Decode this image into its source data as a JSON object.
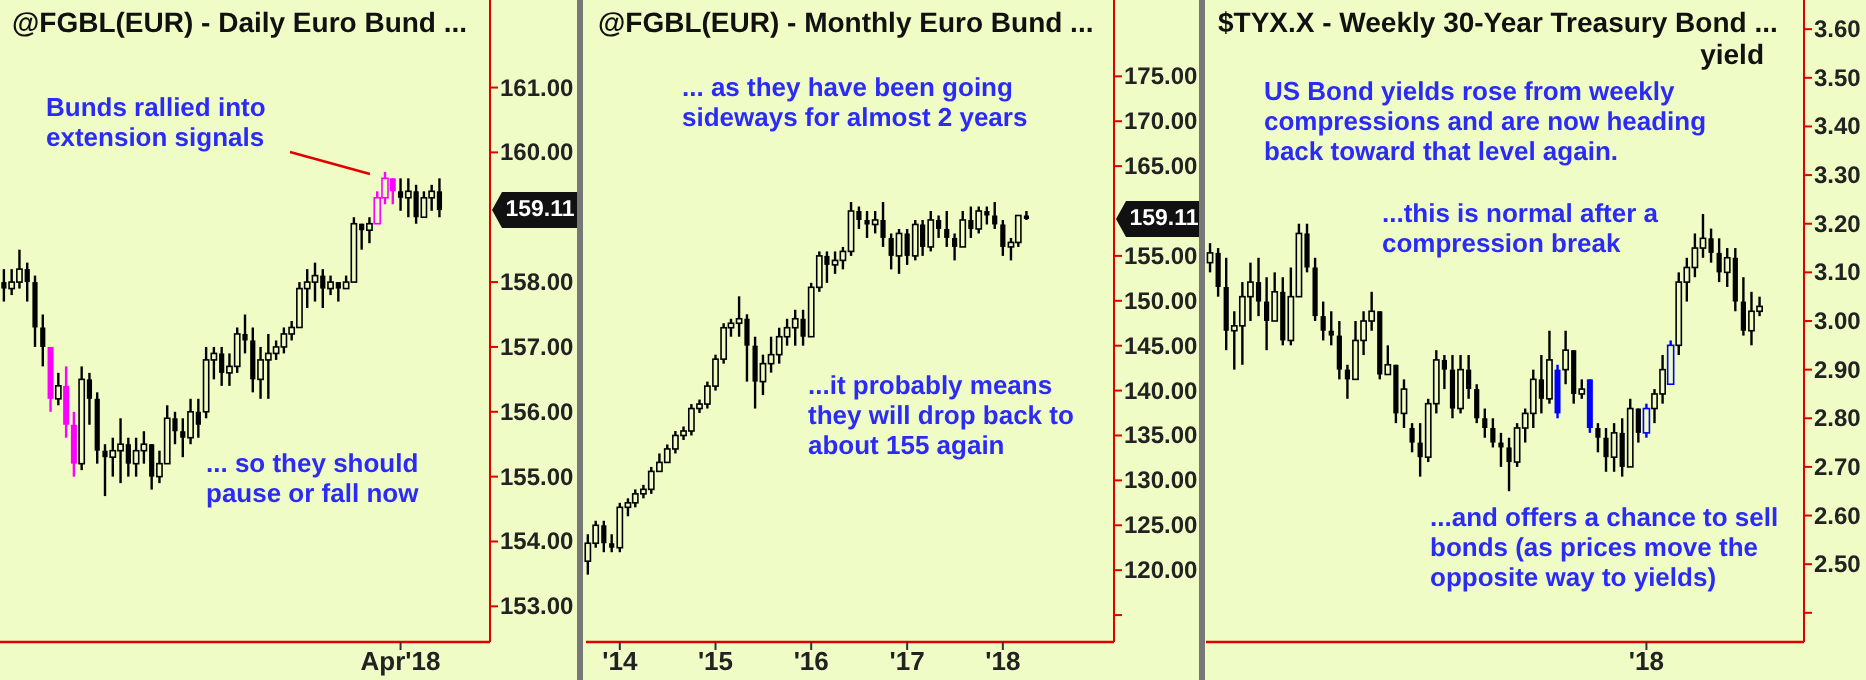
{
  "chart_data": [
    {
      "type": "candlestick",
      "title": "@FGBL(EUR) - Daily  Euro Bund  ...",
      "categories": [
        null,
        null,
        null,
        null,
        null,
        null,
        null,
        null,
        null,
        null,
        null,
        null,
        null,
        null,
        null,
        null,
        null,
        null,
        null,
        null,
        null,
        null,
        null,
        null,
        null,
        null,
        null,
        null,
        null,
        null,
        null,
        null,
        null,
        null,
        null,
        null,
        null,
        null,
        null,
        null,
        null,
        null,
        null,
        null,
        null,
        null,
        null,
        null,
        null,
        null,
        null,
        "Apr'18",
        null,
        null,
        null,
        null,
        null,
        null,
        null,
        null,
        null,
        null,
        null
      ],
      "ohlc": [
        [
          158.0,
          158.2,
          157.7,
          157.9
        ],
        [
          157.9,
          158.2,
          157.8,
          158.0
        ],
        [
          158.0,
          158.5,
          157.9,
          158.2
        ],
        [
          158.2,
          158.3,
          157.7,
          158.0
        ],
        [
          158.0,
          158.1,
          157.0,
          157.3
        ],
        [
          157.3,
          157.5,
          156.7,
          157.0
        ],
        [
          157.0,
          157.0,
          156.0,
          156.2
        ],
        [
          156.2,
          156.6,
          156.1,
          156.4
        ],
        [
          156.4,
          156.7,
          155.6,
          155.8
        ],
        [
          155.8,
          156.0,
          155.0,
          155.2
        ],
        [
          155.2,
          156.7,
          155.1,
          156.5
        ],
        [
          156.5,
          156.6,
          155.8,
          156.2
        ],
        [
          156.2,
          156.3,
          155.2,
          155.4
        ],
        [
          155.4,
          155.5,
          154.7,
          155.3
        ],
        [
          155.3,
          155.6,
          155.0,
          155.4
        ],
        [
          155.4,
          155.9,
          154.9,
          155.5
        ],
        [
          155.5,
          155.6,
          155.0,
          155.2
        ],
        [
          155.2,
          155.6,
          155.0,
          155.4
        ],
        [
          155.4,
          155.7,
          155.2,
          155.5
        ],
        [
          155.5,
          155.5,
          154.8,
          155.0
        ],
        [
          155.0,
          155.4,
          154.9,
          155.2
        ],
        [
          155.2,
          156.1,
          155.2,
          155.9
        ],
        [
          155.9,
          156.0,
          155.5,
          155.7
        ],
        [
          155.7,
          155.9,
          155.3,
          155.6
        ],
        [
          155.6,
          156.2,
          155.5,
          156.0
        ],
        [
          156.0,
          156.2,
          155.6,
          155.8
        ],
        [
          156.0,
          157.0,
          155.9,
          156.8
        ],
        [
          156.8,
          157.0,
          156.5,
          156.9
        ],
        [
          156.9,
          157.0,
          156.4,
          156.6
        ],
        [
          156.6,
          156.9,
          156.4,
          156.7
        ],
        [
          156.7,
          157.3,
          156.6,
          157.2
        ],
        [
          157.2,
          157.5,
          156.9,
          157.1
        ],
        [
          157.1,
          157.3,
          156.3,
          156.5
        ],
        [
          156.5,
          157.0,
          156.2,
          156.8
        ],
        [
          156.8,
          157.2,
          156.2,
          156.9
        ],
        [
          156.9,
          157.1,
          156.8,
          157.0
        ],
        [
          157.0,
          157.3,
          156.9,
          157.2
        ],
        [
          157.2,
          157.4,
          157.1,
          157.3
        ],
        [
          157.3,
          158.0,
          157.3,
          157.9
        ],
        [
          157.9,
          158.2,
          157.6,
          158.0
        ],
        [
          158.0,
          158.3,
          157.7,
          158.1
        ],
        [
          158.1,
          158.2,
          157.6,
          157.9
        ],
        [
          157.9,
          158.1,
          157.8,
          158.0
        ],
        [
          158.0,
          158.0,
          157.7,
          157.9
        ],
        [
          157.9,
          158.1,
          157.9,
          158.0
        ],
        [
          158.0,
          159.0,
          158.0,
          158.9
        ],
        [
          158.9,
          158.9,
          158.5,
          158.8
        ],
        [
          158.8,
          159.0,
          158.6,
          158.9
        ],
        [
          158.9,
          159.4,
          158.9,
          159.3
        ],
        [
          159.3,
          159.7,
          159.2,
          159.6
        ],
        [
          159.6,
          159.6,
          159.2,
          159.4
        ],
        [
          159.4,
          159.6,
          159.1,
          159.3
        ],
        [
          159.3,
          159.6,
          159.0,
          159.4
        ],
        [
          159.4,
          159.5,
          158.9,
          159.0
        ],
        [
          159.0,
          159.4,
          159.0,
          159.3
        ],
        [
          159.3,
          159.5,
          159.1,
          159.4
        ],
        [
          159.4,
          159.6,
          159.0,
          159.11
        ],
        null,
        null,
        null,
        null,
        null,
        null
      ],
      "colors": [
        "#000000",
        "#000000",
        "#000000",
        "#000000",
        "#000000",
        "#000000",
        "#ff00ff",
        "#000000",
        "#ff00ff",
        "#ff00ff",
        "#000000",
        "#000000",
        "#000000",
        "#000000",
        "#000000",
        "#000000",
        "#000000",
        "#000000",
        "#000000",
        "#000000",
        "#000000",
        "#000000",
        "#000000",
        "#000000",
        "#000000",
        "#000000",
        "#000000",
        "#000000",
        "#000000",
        "#000000",
        "#000000",
        "#000000",
        "#000000",
        "#000000",
        "#000000",
        "#000000",
        "#000000",
        "#000000",
        "#000000",
        "#000000",
        "#000000",
        "#000000",
        "#000000",
        "#000000",
        "#000000",
        "#000000",
        "#000000",
        "#000000",
        "#ff00ff",
        "#ff00ff",
        "#ff00ff",
        "#000000",
        "#000000",
        "#000000",
        "#000000",
        "#000000",
        "#000000",
        null,
        null,
        null,
        null,
        null,
        null
      ],
      "ylim": [
        152.45,
        162.35
      ],
      "yticks": [
        {
          "value": 153,
          "label": "153.00"
        },
        {
          "value": 154,
          "label": "154.00"
        },
        {
          "value": 155,
          "label": "155.00"
        },
        {
          "value": 156,
          "label": "156.00"
        },
        {
          "value": 157,
          "label": "157.00"
        },
        {
          "value": 158,
          "label": "158.00"
        },
        {
          "value": 160,
          "label": "160.00"
        },
        {
          "value": 161,
          "label": "161.00"
        }
      ],
      "annotations": [
        "Bunds rallied into extension signals",
        "... so they should pause or fall now",
        "159.11"
      ]
    },
    {
      "type": "candlestick",
      "title": "@FGBL(EUR) - Monthly  Euro Bund  ...",
      "x": [
        "2013-09-01",
        "2013-10-01",
        "2013-11-01",
        "2013-12-01",
        "2014-01-01",
        "2014-02-01",
        "2014-03-01",
        "2014-04-01",
        "2014-05-01",
        "2014-06-01",
        "2014-07-01",
        "2014-08-01",
        "2014-09-01",
        "2014-10-01",
        "2014-11-01",
        "2014-12-01",
        "2015-01-01",
        "2015-02-01",
        "2015-03-01",
        "2015-04-01",
        "2015-05-01",
        "2015-06-01",
        "2015-07-01",
        "2015-08-01",
        "2015-09-01",
        "2015-10-01",
        "2015-11-01",
        "2015-12-01",
        "2016-01-01",
        "2016-02-01",
        "2016-03-01",
        "2016-04-01",
        "2016-05-01",
        "2016-06-01",
        "2016-07-01",
        "2016-08-01",
        "2016-09-01",
        "2016-10-01",
        "2016-11-01",
        "2016-12-01",
        "2017-01-01",
        "2017-02-01",
        "2017-03-01",
        "2017-04-01",
        "2017-05-01",
        "2017-06-01",
        "2017-07-01",
        "2017-08-01",
        "2017-09-01",
        "2017-10-01",
        "2017-11-01",
        "2017-12-01",
        "2018-01-01",
        "2018-02-01",
        "2018-03-01",
        "2018-04-01"
      ],
      "ohlc": [
        [
          121,
          124,
          119.5,
          123
        ],
        [
          123,
          125.5,
          122.5,
          125
        ],
        [
          125,
          125.5,
          122,
          123
        ],
        [
          123,
          124,
          122,
          122.5
        ],
        [
          122.5,
          127.5,
          122,
          127
        ],
        [
          127,
          128,
          126,
          127.5
        ],
        [
          127.5,
          129,
          127,
          128.5
        ],
        [
          128.5,
          129.5,
          128,
          129
        ],
        [
          129,
          131.5,
          128.5,
          131
        ],
        [
          131,
          133,
          131,
          132
        ],
        [
          132,
          134,
          132,
          133.5
        ],
        [
          133.5,
          135.5,
          133,
          135
        ],
        [
          135,
          136,
          134.5,
          135.5
        ],
        [
          135.5,
          138.5,
          135,
          138
        ],
        [
          138,
          139,
          137.5,
          138.5
        ],
        [
          138.5,
          141,
          138,
          140.5
        ],
        [
          140.5,
          144,
          140,
          143.5
        ],
        [
          143.5,
          147.5,
          143,
          147
        ],
        [
          147,
          148,
          146,
          147.5
        ],
        [
          147.5,
          150.5,
          146,
          148
        ],
        [
          148,
          148.5,
          141,
          145
        ],
        [
          145,
          146,
          138,
          141
        ],
        [
          141,
          144,
          139.5,
          143
        ],
        [
          143,
          146,
          142,
          144
        ],
        [
          144,
          147,
          143,
          146
        ],
        [
          146,
          148,
          145,
          147
        ],
        [
          147,
          149,
          145,
          148
        ],
        [
          148,
          149,
          145,
          146
        ],
        [
          146,
          152,
          146,
          151.5
        ],
        [
          151.5,
          155.5,
          151,
          155
        ],
        [
          155,
          155.5,
          152,
          154
        ],
        [
          154,
          155.5,
          153,
          154.5
        ],
        [
          154.5,
          156,
          153.5,
          155.5
        ],
        [
          155.5,
          161,
          155,
          160
        ],
        [
          160,
          160.5,
          158,
          159
        ],
        [
          159,
          160,
          157,
          158.5
        ],
        [
          158.5,
          160,
          157.5,
          159
        ],
        [
          159,
          161,
          156,
          157
        ],
        [
          157,
          157.5,
          153.5,
          155
        ],
        [
          155,
          158,
          153,
          157.5
        ],
        [
          157.5,
          158,
          154,
          155
        ],
        [
          155,
          159,
          154.5,
          158.5
        ],
        [
          158.5,
          159,
          155,
          156
        ],
        [
          156,
          160,
          155.5,
          159
        ],
        [
          159,
          159.5,
          157,
          158
        ],
        [
          158,
          160,
          156,
          157
        ],
        [
          157,
          157.5,
          154.5,
          156
        ],
        [
          156,
          160,
          156,
          159
        ],
        [
          159,
          160.5,
          157,
          158
        ],
        [
          158,
          160.5,
          157.5,
          160
        ],
        [
          160,
          160.5,
          158.5,
          159.5
        ],
        [
          159.5,
          161,
          158,
          158.5
        ],
        [
          158.5,
          159,
          155,
          156
        ],
        [
          156,
          157,
          154.5,
          156.5
        ],
        [
          156.5,
          159.5,
          156,
          159.5
        ],
        [
          159.5,
          160,
          159,
          159.11
        ]
      ],
      "colors": [
        "#000000",
        "#000000",
        "#000000",
        "#000000",
        "#000000",
        "#000000",
        "#000000",
        "#000000",
        "#000000",
        "#000000",
        "#000000",
        "#000000",
        "#000000",
        "#000000",
        "#000000",
        "#000000",
        "#000000",
        "#000000",
        "#000000",
        "#000000",
        "#000000",
        "#000000",
        "#000000",
        "#000000",
        "#000000",
        "#000000",
        "#000000",
        "#000000",
        "#000000",
        "#000000",
        "#000000",
        "#000000",
        "#000000",
        "#000000",
        "#000000",
        "#000000",
        "#000000",
        "#000000",
        "#000000",
        "#000000",
        "#000000",
        "#000000",
        "#000000",
        "#000000",
        "#000000",
        "#000000",
        "#000000",
        "#000000",
        "#000000",
        "#000000",
        "#000000",
        "#000000",
        "#000000",
        "#000000",
        "#000000",
        "#000000"
      ],
      "xlim": [
        "2013-08-25",
        "2019-03-01"
      ],
      "xticks": [
        {
          "value": "2014-01-01",
          "label": "'14"
        },
        {
          "value": "2015-01-01",
          "label": "'15"
        },
        {
          "value": "2016-01-01",
          "label": "'16"
        },
        {
          "value": "2017-01-01",
          "label": "'17"
        },
        {
          "value": "2018-01-01",
          "label": "'18"
        }
      ],
      "ylim": [
        112,
        183.5
      ],
      "yticks": [
        {
          "value": 115,
          "label": null
        },
        {
          "value": 120,
          "label": "120.00"
        },
        {
          "value": 125,
          "label": "125.00"
        },
        {
          "value": 130,
          "label": "130.00"
        },
        {
          "value": 135,
          "label": "135.00"
        },
        {
          "value": 140,
          "label": "140.00"
        },
        {
          "value": 145,
          "label": "145.00"
        },
        {
          "value": 150,
          "label": "150.00"
        },
        {
          "value": 155,
          "label": "155.00"
        },
        {
          "value": 165,
          "label": "165.00"
        },
        {
          "value": 170,
          "label": "170.00"
        },
        {
          "value": 175,
          "label": "175.00"
        }
      ],
      "annotations": [
        "... as they have been going sideways for almost 2 years",
        "...it probably means they will drop back to about 155 again",
        "159.11"
      ]
    },
    {
      "type": "candlestick",
      "title": "$TYX.X - Weekly  30-Year Treasury Bond ...",
      "subtitle": "yield",
      "categories": [
        null,
        null,
        null,
        null,
        null,
        null,
        null,
        null,
        null,
        null,
        null,
        null,
        null,
        null,
        null,
        null,
        null,
        null,
        null,
        null,
        null,
        null,
        null,
        null,
        null,
        null,
        null,
        null,
        null,
        null,
        null,
        null,
        null,
        null,
        null,
        null,
        null,
        null,
        null,
        null,
        null,
        null,
        null,
        null,
        null,
        null,
        null,
        null,
        null,
        null,
        null,
        null,
        null,
        null,
        "'18",
        null,
        null,
        null,
        null,
        null,
        null,
        null,
        null,
        null,
        null,
        null,
        null,
        null,
        null,
        null,
        null,
        null,
        null,
        null
      ],
      "ohlc": [
        [
          3.12,
          3.16,
          3.1,
          3.14
        ],
        [
          3.14,
          3.15,
          3.05,
          3.07
        ],
        [
          3.07,
          3.13,
          2.94,
          2.98
        ],
        [
          2.98,
          3.02,
          2.9,
          2.99
        ],
        [
          2.99,
          3.08,
          2.91,
          3.05
        ],
        [
          3.05,
          3.12,
          3.0,
          3.08
        ],
        [
          3.08,
          3.13,
          3.01,
          3.04
        ],
        [
          3.04,
          3.09,
          2.94,
          3.0
        ],
        [
          3.0,
          3.1,
          3.0,
          3.06
        ],
        [
          3.06,
          3.09,
          2.95,
          2.96
        ],
        [
          2.96,
          3.11,
          2.95,
          3.05
        ],
        [
          3.05,
          3.2,
          3.05,
          3.18
        ],
        [
          3.18,
          3.2,
          3.1,
          3.11
        ],
        [
          3.11,
          3.13,
          3.0,
          3.01
        ],
        [
          3.01,
          3.04,
          2.96,
          2.98
        ],
        [
          2.98,
          3.02,
          2.95,
          2.97
        ],
        [
          2.97,
          3.0,
          2.88,
          2.9
        ],
        [
          2.9,
          2.91,
          2.84,
          2.88
        ],
        [
          2.88,
          3.0,
          2.88,
          2.96
        ],
        [
          2.96,
          3.02,
          2.93,
          3.0
        ],
        [
          3.0,
          3.06,
          2.98,
          3.02
        ],
        [
          3.02,
          3.02,
          2.88,
          2.89
        ],
        [
          2.89,
          2.95,
          2.89,
          2.91
        ],
        [
          2.91,
          2.91,
          2.79,
          2.81
        ],
        [
          2.81,
          2.88,
          2.78,
          2.86
        ],
        [
          2.78,
          2.79,
          2.73,
          2.75
        ],
        [
          2.75,
          2.79,
          2.68,
          2.72
        ],
        [
          2.72,
          2.84,
          2.71,
          2.83
        ],
        [
          2.83,
          2.94,
          2.81,
          2.92
        ],
        [
          2.92,
          2.93,
          2.86,
          2.9
        ],
        [
          2.9,
          2.93,
          2.8,
          2.82
        ],
        [
          2.82,
          2.93,
          2.81,
          2.9
        ],
        [
          2.9,
          2.93,
          2.84,
          2.86
        ],
        [
          2.86,
          2.87,
          2.79,
          2.8
        ],
        [
          2.8,
          2.82,
          2.76,
          2.78
        ],
        [
          2.78,
          2.8,
          2.74,
          2.75
        ],
        [
          2.75,
          2.77,
          2.7,
          2.74
        ],
        [
          2.74,
          2.76,
          2.65,
          2.71
        ],
        [
          2.71,
          2.79,
          2.7,
          2.78
        ],
        [
          2.78,
          2.82,
          2.75,
          2.81
        ],
        [
          2.81,
          2.9,
          2.78,
          2.88
        ],
        [
          2.88,
          2.93,
          2.81,
          2.84
        ],
        [
          2.84,
          2.98,
          2.83,
          2.92
        ],
        [
          2.9,
          2.91,
          2.8,
          2.81
        ],
        [
          2.9,
          2.98,
          2.87,
          2.94
        ],
        [
          2.94,
          2.94,
          2.83,
          2.85
        ],
        [
          2.85,
          2.88,
          2.84,
          2.86
        ],
        [
          2.88,
          2.88,
          2.77,
          2.78
        ],
        [
          2.78,
          2.79,
          2.73,
          2.76
        ],
        [
          2.76,
          2.78,
          2.69,
          2.72
        ],
        [
          2.72,
          2.79,
          2.69,
          2.77
        ],
        [
          2.77,
          2.8,
          2.68,
          2.7
        ],
        [
          2.7,
          2.84,
          2.7,
          2.82
        ],
        [
          2.82,
          2.82,
          2.75,
          2.77
        ],
        [
          2.77,
          2.83,
          2.76,
          2.82
        ],
        [
          2.82,
          2.86,
          2.79,
          2.85
        ],
        [
          2.85,
          2.93,
          2.83,
          2.9
        ],
        [
          2.87,
          2.96,
          2.87,
          2.95
        ],
        [
          2.95,
          3.1,
          2.93,
          3.08
        ],
        [
          3.08,
          3.13,
          3.04,
          3.11
        ],
        [
          3.11,
          3.18,
          3.09,
          3.15
        ],
        [
          3.15,
          3.22,
          3.13,
          3.17
        ],
        [
          3.17,
          3.19,
          3.12,
          3.14
        ],
        [
          3.14,
          3.17,
          3.08,
          3.1
        ],
        [
          3.1,
          3.15,
          3.07,
          3.13
        ],
        [
          3.13,
          3.15,
          3.02,
          3.04
        ],
        [
          3.04,
          3.09,
          2.97,
          2.98
        ],
        [
          2.98,
          3.06,
          2.95,
          3.02
        ],
        [
          3.02,
          3.05,
          3.01,
          3.03
        ],
        null,
        null,
        null,
        null,
        null
      ],
      "colors": [
        "#000000",
        "#000000",
        "#000000",
        "#000000",
        "#000000",
        "#000000",
        "#000000",
        "#000000",
        "#000000",
        "#000000",
        "#000000",
        "#000000",
        "#000000",
        "#000000",
        "#000000",
        "#000000",
        "#000000",
        "#000000",
        "#000000",
        "#000000",
        "#000000",
        "#000000",
        "#000000",
        "#000000",
        "#000000",
        "#000000",
        "#000000",
        "#000000",
        "#000000",
        "#000000",
        "#000000",
        "#000000",
        "#000000",
        "#000000",
        "#000000",
        "#000000",
        "#000000",
        "#000000",
        "#000000",
        "#000000",
        "#000000",
        "#000000",
        "#000000",
        "#0000ff",
        "#000000",
        "#000000",
        "#000000",
        "#0000ff",
        "#000000",
        "#000000",
        "#000000",
        "#000000",
        "#000000",
        "#000000",
        "#0000ff",
        "#000000",
        "#000000",
        "#0000ff",
        "#000000",
        "#000000",
        "#000000",
        "#000000",
        "#000000",
        "#000000",
        "#000000",
        "#000000",
        "#000000",
        "#000000",
        "#000000",
        null,
        null,
        null,
        null,
        null
      ],
      "ylim": [
        2.34,
        3.66
      ],
      "yticks": [
        {
          "value": 2.4,
          "label": null
        },
        {
          "value": 2.5,
          "label": "2.50"
        },
        {
          "value": 2.6,
          "label": "2.60"
        },
        {
          "value": 2.7,
          "label": "2.70"
        },
        {
          "value": 2.8,
          "label": "2.80"
        },
        {
          "value": 2.9,
          "label": "2.90"
        },
        {
          "value": 3.0,
          "label": "3.00"
        },
        {
          "value": 3.1,
          "label": "3.10"
        },
        {
          "value": 3.2,
          "label": "3.20"
        },
        {
          "value": 3.3,
          "label": "3.30"
        },
        {
          "value": 3.4,
          "label": "3.40"
        },
        {
          "value": 3.5,
          "label": "3.50"
        },
        {
          "value": 3.6,
          "label": "3.60"
        }
      ],
      "annotations": [
        "US Bond yields rose from weekly compressions and are now heading back toward that level again.",
        "...this is normal after a compression break",
        "...and offers a chance to sell bonds (as prices move the opposite way to yields)"
      ]
    }
  ]
}
